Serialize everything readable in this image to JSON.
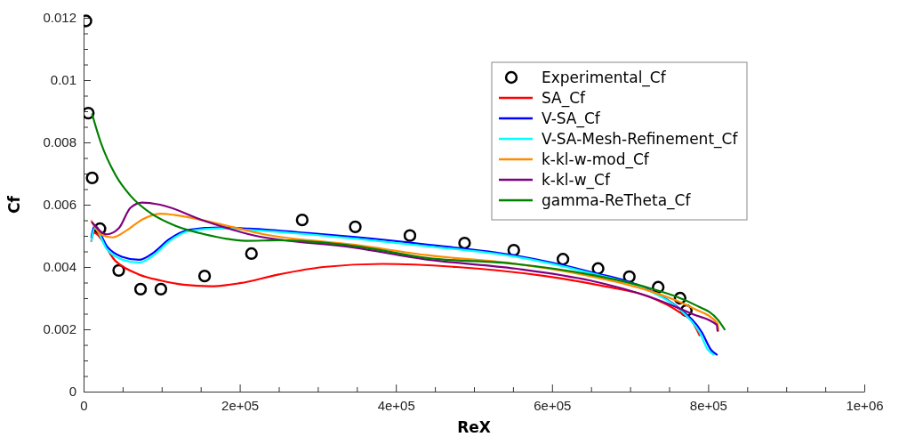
{
  "chart_data": {
    "type": "line",
    "xlabel": "ReX",
    "ylabel": "Cf",
    "xlim": [
      0,
      1000000
    ],
    "ylim": [
      0,
      0.012
    ],
    "xticks": [
      0,
      {
        "value": 50000,
        "label": null
      },
      {
        "value": 100000,
        "label": null
      },
      {
        "value": 150000,
        "label": null
      },
      {
        "value": 200000,
        "label": "2e+05"
      },
      {
        "value": 250000,
        "label": null
      },
      {
        "value": 300000,
        "label": null
      },
      {
        "value": 350000,
        "label": null
      },
      {
        "value": 400000,
        "label": "4e+05"
      },
      {
        "value": 450000,
        "label": null
      },
      {
        "value": 500000,
        "label": null
      },
      {
        "value": 550000,
        "label": null
      },
      {
        "value": 600000,
        "label": "6e+05"
      },
      {
        "value": 650000,
        "label": null
      },
      {
        "value": 700000,
        "label": null
      },
      {
        "value": 750000,
        "label": null
      },
      {
        "value": 800000,
        "label": "8e+05"
      },
      {
        "value": 850000,
        "label": null
      },
      {
        "value": 900000,
        "label": null
      },
      {
        "value": 950000,
        "label": null
      },
      {
        "value": 1000000,
        "label": "1e+06"
      }
    ],
    "yticks": [
      0,
      {
        "value": 0.0005,
        "label": null
      },
      {
        "value": 0.001,
        "label": null
      },
      {
        "value": 0.0015,
        "label": null
      },
      0.002,
      {
        "value": 0.0025,
        "label": null
      },
      {
        "value": 0.003,
        "label": null
      },
      {
        "value": 0.0035,
        "label": null
      },
      0.004,
      {
        "value": 0.0045,
        "label": null
      },
      {
        "value": 0.005,
        "label": null
      },
      {
        "value": 0.0055,
        "label": null
      },
      0.006,
      {
        "value": 0.0065,
        "label": null
      },
      {
        "value": 0.007,
        "label": null
      },
      {
        "value": 0.0075,
        "label": null
      },
      0.008,
      {
        "value": 0.0085,
        "label": null
      },
      {
        "value": 0.009,
        "label": null
      },
      {
        "value": 0.0095,
        "label": null
      },
      0.01,
      {
        "value": 0.0105,
        "label": null
      },
      {
        "value": 0.011,
        "label": null
      },
      {
        "value": 0.0115,
        "label": null
      },
      0.012
    ],
    "grid": false,
    "legend": "top right",
    "series": [
      {
        "name": "Experimental_Cf",
        "type": "scatter",
        "marker": "circle",
        "color": "#000000",
        "x": [
          3000,
          6000,
          11000,
          21000,
          45000,
          73000,
          99000,
          155000,
          215000,
          280000,
          348000,
          418000,
          488000,
          551000,
          614000,
          659000,
          699000,
          736000,
          764000,
          772000
        ],
        "values": [
          0.0119,
          0.00894,
          0.00686,
          0.00523,
          0.00389,
          0.00329,
          0.00329,
          0.00371,
          0.00443,
          0.00551,
          0.00529,
          0.00501,
          0.00477,
          0.00454,
          0.00425,
          0.00395,
          0.00369,
          0.00335,
          0.003,
          0.0026
        ]
      },
      {
        "name": "SA_Cf",
        "color": "#ff0000",
        "x": [
          10000,
          13000,
          41000,
          71000,
          98000,
          128000,
          163000,
          200000,
          250000,
          307000,
          383000,
          478000,
          591000,
          667000,
          724000,
          762000,
          781000,
          789000
        ],
        "values": [
          0.00484,
          0.0051,
          0.00419,
          0.00376,
          0.00357,
          0.00343,
          0.00338,
          0.00348,
          0.00376,
          0.004,
          0.0041,
          0.004,
          0.00371,
          0.00338,
          0.00305,
          0.00257,
          0.00219,
          0.00181
        ]
      },
      {
        "name": "V-SA_Cf",
        "color": "#0000ff",
        "x": [
          10000,
          14000,
          30000,
          49000,
          71000,
          90000,
          109000,
          136000,
          174000,
          212000,
          288000,
          348000,
          440000,
          553000,
          648000,
          724000,
          762000,
          792000,
          804000,
          811000
        ],
        "values": [
          0.00495,
          0.00533,
          0.00466,
          0.00433,
          0.00423,
          0.00447,
          0.00488,
          0.0052,
          0.00527,
          0.00523,
          0.00509,
          0.00496,
          0.00472,
          0.00437,
          0.00385,
          0.00327,
          0.00269,
          0.0019,
          0.00133,
          0.00119
        ]
      },
      {
        "name": "V-SA-Mesh-Refinement_Cf",
        "color": "#00ffff",
        "x": [
          10000,
          14000,
          30000,
          49000,
          71000,
          90000,
          109000,
          136000,
          174000,
          212000,
          288000,
          348000,
          440000,
          553000,
          648000,
          724000,
          762000,
          789000,
          800000,
          807000
        ],
        "values": [
          0.00486,
          0.00524,
          0.00457,
          0.00424,
          0.00414,
          0.00438,
          0.00481,
          0.00516,
          0.00524,
          0.00519,
          0.00505,
          0.00491,
          0.00467,
          0.00433,
          0.00381,
          0.00324,
          0.00267,
          0.0019,
          0.00133,
          0.00119
        ]
      },
      {
        "name": "k-kl-w-mod_Cf",
        "color": "#ff8c00",
        "x": [
          10000,
          22000,
          37000,
          56000,
          75000,
          98000,
          117000,
          174000,
          231000,
          348000,
          440000,
          553000,
          648000,
          724000,
          781000,
          812000,
          813000
        ],
        "values": [
          0.00548,
          0.00505,
          0.00495,
          0.00519,
          0.00552,
          0.00571,
          0.00567,
          0.00538,
          0.00505,
          0.00471,
          0.00438,
          0.0041,
          0.00371,
          0.00324,
          0.00267,
          0.00219,
          0.00195
        ]
      },
      {
        "name": "k-kl-w_Cf",
        "color": "#800080",
        "x": [
          11000,
          30000,
          45000,
          60000,
          75000,
          98000,
          155000,
          212000,
          348000,
          440000,
          553000,
          648000,
          724000,
          781000,
          811000,
          812000
        ],
        "values": [
          0.00543,
          0.00505,
          0.00524,
          0.0059,
          0.00607,
          0.006,
          0.00548,
          0.00505,
          0.00462,
          0.00424,
          0.00395,
          0.00357,
          0.00305,
          0.00248,
          0.00214,
          0.00195
        ]
      },
      {
        "name": "gamma-ReTheta_Cf",
        "color": "#008000",
        "x": [
          11000,
          22000,
          41000,
          60000,
          87000,
          117000,
          155000,
          208000,
          250000,
          348000,
          440000,
          553000,
          648000,
          724000,
          781000,
          813000,
          821000
        ],
        "values": [
          0.0089,
          0.008,
          0.00695,
          0.00629,
          0.00571,
          0.00533,
          0.00505,
          0.00484,
          0.00486,
          0.00467,
          0.00429,
          0.0041,
          0.00376,
          0.00333,
          0.00281,
          0.00229,
          0.002
        ]
      }
    ]
  }
}
